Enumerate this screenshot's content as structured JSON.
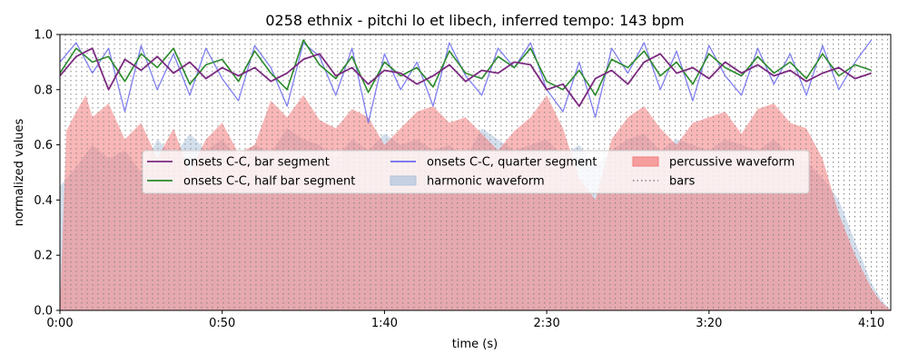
{
  "chart_data": {
    "type": "line",
    "title": "0258 ethnix - pitchi lo et libech, inferred tempo: 143 bpm",
    "xlabel": "time (s)",
    "ylabel": "normalized values",
    "xlim": [
      0,
      256
    ],
    "ylim": [
      0,
      1.0
    ],
    "xticks": [
      {
        "value": 0,
        "label": "0:00"
      },
      {
        "value": 50,
        "label": "0:50"
      },
      {
        "value": 100,
        "label": "1:40"
      },
      {
        "value": 150,
        "label": "2:30"
      },
      {
        "value": 200,
        "label": "3:20"
      },
      {
        "value": 250,
        "label": "4:10"
      }
    ],
    "yticks": [
      {
        "value": 0.0,
        "label": "0.0"
      },
      {
        "value": 0.2,
        "label": "0.2"
      },
      {
        "value": 0.4,
        "label": "0.4"
      },
      {
        "value": 0.6,
        "label": "0.6"
      },
      {
        "value": 0.8,
        "label": "0.8"
      },
      {
        "value": 1.0,
        "label": "1.0"
      }
    ],
    "grid": false,
    "legend_position": "center",
    "bar_interval_s": 1.678,
    "legend": [
      {
        "label": "onsets C-C, bar segment",
        "kind": "line",
        "color": "#7b2a80"
      },
      {
        "label": "onsets C-C, half bar segment",
        "kind": "line",
        "color": "#2a8a2a"
      },
      {
        "label": "onsets C-C, quarter segment",
        "kind": "line",
        "color": "#6a6aee"
      },
      {
        "label": "harmonic waveform",
        "kind": "patch",
        "color": "#b0c4de"
      },
      {
        "label": "percussive waveform",
        "kind": "patch",
        "color": "#f47c7c"
      },
      {
        "label": "bars",
        "kind": "dotted",
        "color": "#808080"
      }
    ],
    "series": [
      {
        "name": "onsets C-C, bar segment",
        "color": "#7b2a80",
        "x": [
          0,
          5,
          10,
          15,
          20,
          25,
          30,
          35,
          40,
          45,
          50,
          55,
          60,
          65,
          70,
          75,
          80,
          85,
          90,
          95,
          100,
          105,
          110,
          115,
          120,
          125,
          130,
          135,
          140,
          145,
          150,
          155,
          160,
          165,
          170,
          175,
          180,
          185,
          190,
          195,
          200,
          205,
          210,
          215,
          220,
          225,
          230,
          235,
          240,
          245,
          250
        ],
        "y": [
          0.85,
          0.92,
          0.95,
          0.8,
          0.91,
          0.87,
          0.92,
          0.86,
          0.9,
          0.84,
          0.88,
          0.85,
          0.88,
          0.83,
          0.86,
          0.91,
          0.93,
          0.85,
          0.88,
          0.82,
          0.87,
          0.86,
          0.82,
          0.85,
          0.89,
          0.83,
          0.87,
          0.86,
          0.9,
          0.89,
          0.8,
          0.82,
          0.74,
          0.84,
          0.87,
          0.82,
          0.9,
          0.93,
          0.86,
          0.88,
          0.84,
          0.9,
          0.86,
          0.89,
          0.85,
          0.87,
          0.83,
          0.86,
          0.88,
          0.84,
          0.86
        ]
      },
      {
        "name": "onsets C-C, half bar segment",
        "color": "#2a8a2a",
        "x": [
          0,
          5,
          10,
          15,
          20,
          25,
          30,
          35,
          40,
          45,
          50,
          55,
          60,
          65,
          70,
          75,
          80,
          85,
          90,
          95,
          100,
          105,
          110,
          115,
          120,
          125,
          130,
          135,
          140,
          145,
          150,
          155,
          160,
          165,
          170,
          175,
          180,
          185,
          190,
          195,
          200,
          205,
          210,
          215,
          220,
          225,
          230,
          235,
          240,
          245,
          250
        ],
        "y": [
          0.86,
          0.95,
          0.9,
          0.92,
          0.83,
          0.93,
          0.88,
          0.95,
          0.82,
          0.89,
          0.91,
          0.83,
          0.94,
          0.86,
          0.8,
          0.98,
          0.89,
          0.84,
          0.92,
          0.79,
          0.9,
          0.85,
          0.88,
          0.81,
          0.94,
          0.86,
          0.84,
          0.92,
          0.88,
          0.95,
          0.83,
          0.8,
          0.87,
          0.78,
          0.91,
          0.88,
          0.94,
          0.85,
          0.9,
          0.82,
          0.93,
          0.88,
          0.85,
          0.92,
          0.86,
          0.9,
          0.84,
          0.93,
          0.85,
          0.89,
          0.87
        ]
      },
      {
        "name": "onsets C-C, quarter segment",
        "color": "#6a6aee",
        "x": [
          0,
          5,
          10,
          15,
          20,
          25,
          30,
          35,
          40,
          45,
          50,
          55,
          60,
          65,
          70,
          75,
          80,
          85,
          90,
          95,
          100,
          105,
          110,
          115,
          120,
          125,
          130,
          135,
          140,
          145,
          150,
          155,
          160,
          165,
          170,
          175,
          180,
          185,
          190,
          195,
          200,
          205,
          210,
          215,
          220,
          225,
          230,
          235,
          240,
          245,
          250
        ],
        "y": [
          0.9,
          0.97,
          0.86,
          0.95,
          0.72,
          0.96,
          0.8,
          0.93,
          0.78,
          0.95,
          0.84,
          0.76,
          0.96,
          0.88,
          0.74,
          0.97,
          0.92,
          0.78,
          0.95,
          0.68,
          0.93,
          0.8,
          0.9,
          0.74,
          0.97,
          0.85,
          0.78,
          0.95,
          0.88,
          0.97,
          0.8,
          0.72,
          0.9,
          0.7,
          0.95,
          0.86,
          0.97,
          0.8,
          0.94,
          0.76,
          0.96,
          0.85,
          0.78,
          0.95,
          0.82,
          0.93,
          0.78,
          0.96,
          0.8,
          0.9,
          0.98
        ]
      },
      {
        "name": "percussive waveform",
        "color": "#f47c7c",
        "x": [
          0,
          2,
          5,
          8,
          10,
          15,
          20,
          25,
          30,
          35,
          40,
          45,
          50,
          55,
          60,
          65,
          70,
          75,
          80,
          85,
          90,
          95,
          100,
          105,
          110,
          115,
          120,
          125,
          130,
          135,
          140,
          145,
          150,
          155,
          160,
          165,
          170,
          175,
          180,
          185,
          190,
          195,
          200,
          205,
          210,
          215,
          220,
          225,
          230,
          235,
          240,
          245,
          250,
          253,
          256
        ],
        "y": [
          0.0,
          0.65,
          0.72,
          0.78,
          0.7,
          0.75,
          0.62,
          0.68,
          0.55,
          0.66,
          0.5,
          0.62,
          0.68,
          0.57,
          0.6,
          0.76,
          0.7,
          0.78,
          0.69,
          0.66,
          0.73,
          0.7,
          0.6,
          0.66,
          0.72,
          0.74,
          0.68,
          0.7,
          0.64,
          0.58,
          0.65,
          0.7,
          0.78,
          0.66,
          0.48,
          0.4,
          0.62,
          0.7,
          0.74,
          0.66,
          0.6,
          0.68,
          0.7,
          0.72,
          0.64,
          0.73,
          0.75,
          0.68,
          0.66,
          0.55,
          0.35,
          0.2,
          0.08,
          0.03,
          0.0
        ]
      },
      {
        "name": "harmonic waveform",
        "color": "#b0c4de",
        "x": [
          0,
          5,
          10,
          15,
          20,
          25,
          30,
          35,
          40,
          45,
          50,
          55,
          60,
          65,
          70,
          75,
          80,
          85,
          90,
          95,
          100,
          105,
          110,
          115,
          120,
          125,
          130,
          135,
          140,
          145,
          150,
          155,
          160,
          165,
          170,
          175,
          180,
          185,
          190,
          195,
          200,
          205,
          210,
          215,
          220,
          225,
          230,
          235,
          240,
          245,
          250,
          253,
          256
        ],
        "y": [
          0.45,
          0.52,
          0.6,
          0.55,
          0.58,
          0.5,
          0.62,
          0.56,
          0.64,
          0.58,
          0.62,
          0.55,
          0.6,
          0.57,
          0.66,
          0.62,
          0.6,
          0.55,
          0.62,
          0.58,
          0.64,
          0.6,
          0.62,
          0.58,
          0.6,
          0.55,
          0.66,
          0.62,
          0.58,
          0.6,
          0.62,
          0.56,
          0.6,
          0.52,
          0.58,
          0.62,
          0.64,
          0.58,
          0.62,
          0.6,
          0.58,
          0.62,
          0.6,
          0.58,
          0.62,
          0.56,
          0.54,
          0.48,
          0.4,
          0.25,
          0.1,
          0.04,
          0.0
        ]
      }
    ]
  }
}
